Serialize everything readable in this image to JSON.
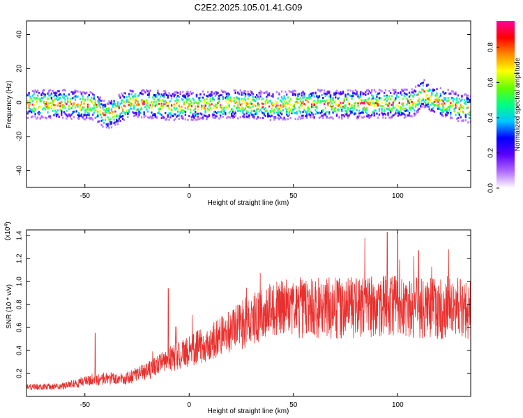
{
  "title": "C2E2.2025.105.01.41.G09",
  "chart_data": [
    {
      "type": "heatmap",
      "xlabel": "Height of straight line (km)",
      "ylabel": "Frequency (Hz)",
      "xlim": [
        -78,
        135
      ],
      "ylim": [
        -50,
        48
      ],
      "xticks": [
        -50,
        0,
        50,
        100
      ],
      "yticks": [
        -40,
        -20,
        0,
        20,
        40
      ],
      "colorbar": {
        "label": "Normalized spectral amplitude",
        "range": [
          0.0,
          0.95
        ],
        "ticks": [
          "0.0",
          "0.2",
          "0.4",
          "0.6",
          "0.8"
        ],
        "colors": [
          "#ffffff",
          "#b06bff",
          "#5a00ff",
          "#0000ff",
          "#00c8ff",
          "#00ff80",
          "#66ff00",
          "#ffff00",
          "#ff8800",
          "#ff0000",
          "#ff0099"
        ]
      },
      "ridge": {
        "x": [
          -78,
          -60,
          -45,
          -40,
          -35,
          -28,
          -20,
          -10,
          0,
          20,
          40,
          60,
          80,
          100,
          108,
          112,
          115,
          120,
          125,
          130,
          135
        ],
        "freq_hz": [
          -1,
          -1,
          -2,
          -8,
          -5,
          0,
          -1,
          -2,
          -2,
          -1,
          -2,
          -1,
          -1,
          -1,
          0,
          6,
          3,
          0,
          -1,
          -3,
          -4
        ]
      }
    },
    {
      "type": "line",
      "xlabel": "Height of straight line (km)",
      "ylabel": "SNR (10 * v/v)",
      "yscale_label": "(x10",
      "yscale_exp": "4",
      "xlim": [
        -78,
        135
      ],
      "ylim": [
        0.0,
        1.45
      ],
      "xticks": [
        -50,
        0,
        50,
        100
      ],
      "yticks": [
        "0.2",
        "0.4",
        "0.6",
        "0.8",
        "1.0",
        "1.2",
        "1.4"
      ],
      "color": "#e8302e",
      "trend": {
        "x": [
          -78,
          -60,
          -50,
          -40,
          -30,
          -20,
          -15,
          -10,
          0,
          10,
          20,
          30,
          40,
          50,
          60,
          70,
          80,
          90,
          100,
          110,
          120,
          130,
          135
        ],
        "y": [
          0.08,
          0.09,
          0.13,
          0.15,
          0.16,
          0.22,
          0.27,
          0.32,
          0.4,
          0.47,
          0.57,
          0.67,
          0.74,
          0.77,
          0.77,
          0.77,
          0.77,
          0.78,
          0.78,
          0.77,
          0.76,
          0.77,
          0.74
        ]
      },
      "peaks": [
        {
          "x": -45,
          "y": 0.55
        },
        {
          "x": -10,
          "y": 0.94
        },
        {
          "x": 95,
          "y": 1.43
        },
        {
          "x": 100,
          "y": 1.43
        },
        {
          "x": 110,
          "y": 1.27
        },
        {
          "x": 130,
          "y": 1.02
        }
      ]
    }
  ]
}
